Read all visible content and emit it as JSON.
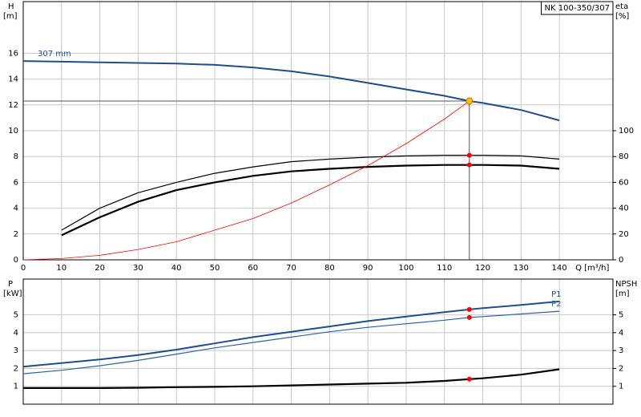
{
  "chart_data": [
    {
      "type": "line",
      "box_label": "NK 100-350/307",
      "xlabel": "Q [m³/h]",
      "ylabel": [
        "H",
        "[m]"
      ],
      "y2label": [
        "eta",
        "[%]"
      ],
      "xlim": [
        0,
        154
      ],
      "xticks": [
        0,
        10,
        20,
        30,
        40,
        50,
        60,
        70,
        80,
        90,
        100,
        110,
        120,
        130,
        140
      ],
      "ylim": [
        0,
        20
      ],
      "yticks": [
        0,
        2,
        4,
        6,
        8,
        10,
        12,
        14,
        16
      ],
      "y2lim": [
        0,
        200
      ],
      "y2ticks": [
        0,
        20,
        40,
        60,
        80,
        100
      ],
      "grid": true,
      "operating_index": 12,
      "x": [
        0,
        10,
        20,
        30,
        40,
        50,
        60,
        70,
        80,
        90,
        100,
        110,
        116.5,
        120,
        130,
        140
      ],
      "series": [
        {
          "name": "307 mm",
          "color": "#1f4e8c",
          "marker": "#ffc000",
          "values": [
            15.4,
            15.35,
            15.3,
            15.25,
            15.2,
            15.1,
            14.9,
            14.6,
            14.2,
            13.7,
            13.2,
            12.7,
            12.3,
            12.15,
            11.6,
            10.8
          ]
        },
        {
          "color": "#000000",
          "axis": "y2",
          "marker": "#ff0000",
          "values": [
            null,
            23,
            40,
            52,
            60,
            67,
            72,
            76,
            78,
            79.5,
            80.5,
            81,
            81,
            81,
            80.5,
            78
          ]
        },
        {
          "color": "#000000",
          "axis": "y2",
          "marker": "#ff0000",
          "values": [
            null,
            19,
            33,
            45,
            54,
            60,
            65,
            68.5,
            70.5,
            72,
            73,
            73.5,
            73.5,
            73.5,
            73,
            70.5
          ]
        },
        {
          "color": "#ff0000",
          "values": [
            0,
            0.1,
            0.35,
            0.8,
            1.4,
            2.3,
            3.2,
            4.4,
            5.8,
            7.3,
            9.0,
            10.9,
            12.3,
            null,
            null,
            null
          ]
        }
      ]
    },
    {
      "type": "line",
      "ylabel": [
        "P",
        "[kW]"
      ],
      "y2label": [
        "NPSH",
        "[m]"
      ],
      "xlim": [
        0,
        154
      ],
      "xticks": [
        0,
        10,
        20,
        30,
        40,
        50,
        60,
        70,
        80,
        90,
        100,
        110,
        120,
        130,
        140
      ],
      "ylim": [
        0,
        7
      ],
      "yticks": [
        1,
        2,
        3,
        4,
        5
      ],
      "y2lim": [
        0,
        7
      ],
      "y2ticks": [
        1,
        2,
        3,
        4,
        5
      ],
      "grid": true,
      "operating_index": 12,
      "x": [
        0,
        10,
        20,
        30,
        40,
        50,
        60,
        70,
        80,
        90,
        100,
        110,
        116.5,
        120,
        130,
        140
      ],
      "series": [
        {
          "name": "P1",
          "color": "#1f4e8c",
          "marker": "#ff0000",
          "values": [
            2.1,
            2.3,
            2.5,
            2.75,
            3.05,
            3.4,
            3.75,
            4.05,
            4.35,
            4.65,
            4.9,
            5.15,
            5.3,
            5.37,
            5.55,
            5.75
          ]
        },
        {
          "name": "P2",
          "color": "#2a64a8",
          "marker": "#ff0000",
          "values": [
            1.7,
            1.9,
            2.15,
            2.45,
            2.8,
            3.15,
            3.45,
            3.75,
            4.05,
            4.3,
            4.5,
            4.7,
            4.85,
            4.9,
            5.05,
            5.2
          ]
        },
        {
          "color": "#000000",
          "axis": "y2",
          "marker": "#ff0000",
          "values": [
            0.9,
            0.9,
            0.9,
            0.92,
            0.95,
            0.97,
            1.0,
            1.05,
            1.1,
            1.15,
            1.2,
            1.3,
            1.4,
            1.45,
            1.65,
            1.95
          ]
        }
      ]
    }
  ]
}
